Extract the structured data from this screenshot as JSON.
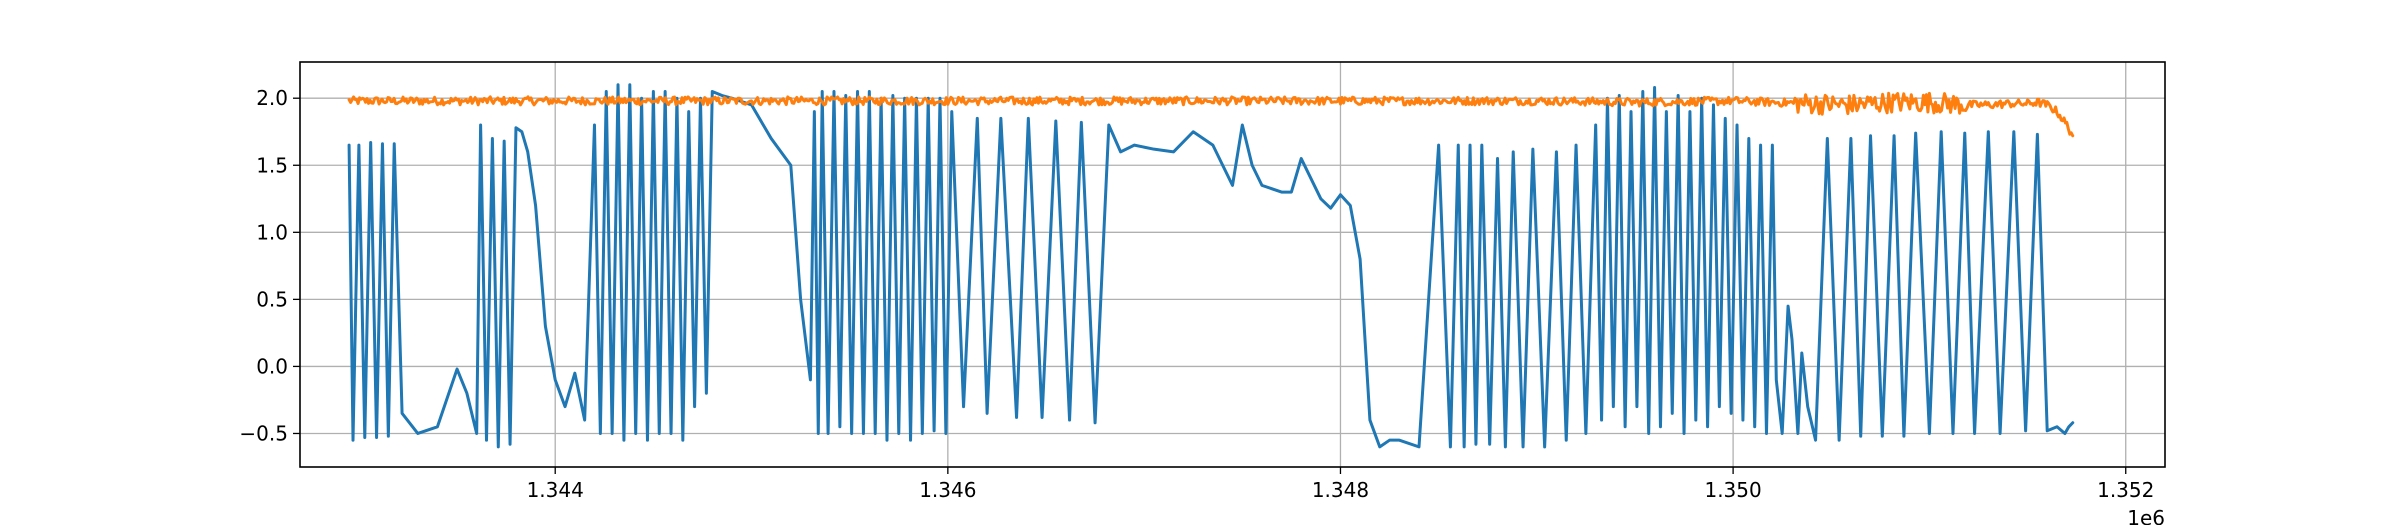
{
  "chart_data": {
    "type": "line",
    "title": "",
    "xlabel": "",
    "ylabel": "",
    "x_offset_label": "1e6",
    "xlim": [
      1342700,
      1352200
    ],
    "ylim": [
      -0.75,
      2.27
    ],
    "grid": true,
    "x_ticks": [
      {
        "value": 1344000,
        "label": "1.344"
      },
      {
        "value": 1346000,
        "label": "1.346"
      },
      {
        "value": 1348000,
        "label": "1.348"
      },
      {
        "value": 1350000,
        "label": "1.350"
      },
      {
        "value": 1352000,
        "label": "1.352"
      }
    ],
    "y_ticks": [
      {
        "value": 2.0,
        "label": "2.0"
      },
      {
        "value": 1.5,
        "label": "1.5"
      },
      {
        "value": 1.0,
        "label": "1.0"
      },
      {
        "value": 0.5,
        "label": "0.5"
      },
      {
        "value": 0.0,
        "label": "0.0"
      },
      {
        "value": -0.5,
        "label": "−0.5"
      }
    ],
    "series": [
      {
        "color": "#1f77b4",
        "x": [
          1342950,
          1342970,
          1343000,
          1343030,
          1343060,
          1343090,
          1343120,
          1343150,
          1343180,
          1343220,
          1343300,
          1343400,
          1343500,
          1343550,
          1343600,
          1343620,
          1343650,
          1343680,
          1343710,
          1343740,
          1343770,
          1343800,
          1343830,
          1343860,
          1343900,
          1343950,
          1344000,
          1344050,
          1344100,
          1344150,
          1344200,
          1344230,
          1344260,
          1344290,
          1344320,
          1344350,
          1344380,
          1344410,
          1344440,
          1344470,
          1344500,
          1344530,
          1344560,
          1344590,
          1344620,
          1344650,
          1344680,
          1344710,
          1344740,
          1344770,
          1344800,
          1344850,
          1344900,
          1345000,
          1345100,
          1345200,
          1345250,
          1345300,
          1345320,
          1345340,
          1345360,
          1345390,
          1345420,
          1345450,
          1345480,
          1345510,
          1345540,
          1345570,
          1345600,
          1345630,
          1345660,
          1345690,
          1345720,
          1345750,
          1345780,
          1345810,
          1345840,
          1345870,
          1345900,
          1345930,
          1345960,
          1345990,
          1346020,
          1346080,
          1346150,
          1346200,
          1346270,
          1346350,
          1346410,
          1346480,
          1346550,
          1346620,
          1346680,
          1346750,
          1346820,
          1346880,
          1346950,
          1347050,
          1347150,
          1347250,
          1347350,
          1347400,
          1347450,
          1347500,
          1347550,
          1347600,
          1347700,
          1347750,
          1347800,
          1347850,
          1347900,
          1347950,
          1348000,
          1348050,
          1348100,
          1348150,
          1348200,
          1348250,
          1348300,
          1348400,
          1348500,
          1348560,
          1348600,
          1348630,
          1348660,
          1348690,
          1348720,
          1348760,
          1348800,
          1348840,
          1348880,
          1348930,
          1348980,
          1349040,
          1349100,
          1349150,
          1349200,
          1349250,
          1349300,
          1349330,
          1349360,
          1349390,
          1349420,
          1349450,
          1349480,
          1349510,
          1349540,
          1349570,
          1349600,
          1349630,
          1349660,
          1349690,
          1349720,
          1349750,
          1349780,
          1349810,
          1349840,
          1349870,
          1349900,
          1349930,
          1349960,
          1349990,
          1350020,
          1350050,
          1350080,
          1350110,
          1350140,
          1350170,
          1350200,
          1350220,
          1350250,
          1350280,
          1350300,
          1350330,
          1350350,
          1350380,
          1350420,
          1350480,
          1350540,
          1350600,
          1350650,
          1350700,
          1350760,
          1350820,
          1350870,
          1350930,
          1351000,
          1351060,
          1351120,
          1351180,
          1351230,
          1351300,
          1351360,
          1351430,
          1351490,
          1351550,
          1351600,
          1351650,
          1351690,
          1351710,
          1351730
        ],
        "y": [
          1.65,
          -0.55,
          1.65,
          -0.53,
          1.67,
          -0.53,
          1.66,
          -0.52,
          1.66,
          -0.35,
          -0.5,
          -0.45,
          -0.02,
          -0.2,
          -0.5,
          1.8,
          -0.55,
          1.7,
          -0.6,
          1.68,
          -0.58,
          1.78,
          1.75,
          1.6,
          1.2,
          0.3,
          -0.1,
          -0.3,
          -0.05,
          -0.4,
          1.8,
          -0.5,
          2.05,
          -0.5,
          2.1,
          -0.55,
          2.1,
          -0.5,
          2.0,
          -0.55,
          2.05,
          -0.5,
          2.05,
          -0.5,
          2.0,
          -0.55,
          1.9,
          -0.3,
          2.0,
          -0.2,
          2.05,
          2.02,
          2.0,
          1.95,
          1.7,
          1.5,
          0.5,
          -0.1,
          1.9,
          -0.5,
          2.05,
          -0.5,
          2.05,
          -0.45,
          2.02,
          -0.5,
          2.05,
          -0.5,
          2.05,
          -0.5,
          2.0,
          -0.55,
          2.02,
          -0.5,
          2.0,
          -0.55,
          2.0,
          -0.5,
          2.0,
          -0.48,
          2.0,
          -0.5,
          1.9,
          -0.3,
          1.85,
          -0.35,
          1.85,
          -0.38,
          1.85,
          -0.38,
          1.83,
          -0.4,
          1.82,
          -0.42,
          1.8,
          1.6,
          1.65,
          1.62,
          1.6,
          1.75,
          1.65,
          1.5,
          1.35,
          1.8,
          1.5,
          1.35,
          1.3,
          1.3,
          1.55,
          1.4,
          1.25,
          1.18,
          1.28,
          1.2,
          0.8,
          -0.4,
          -0.6,
          -0.55,
          -0.55,
          -0.6,
          1.65,
          -0.6,
          1.65,
          -0.6,
          1.65,
          -0.58,
          1.65,
          -0.58,
          1.55,
          -0.6,
          1.6,
          -0.6,
          1.62,
          -0.6,
          1.6,
          -0.55,
          1.65,
          -0.5,
          1.8,
          -0.4,
          2.0,
          -0.3,
          2.02,
          -0.45,
          1.9,
          -0.3,
          2.05,
          -0.5,
          2.08,
          -0.45,
          1.9,
          -0.35,
          2.02,
          -0.5,
          1.9,
          -0.4,
          2.0,
          -0.45,
          1.95,
          -0.3,
          1.85,
          -0.35,
          1.8,
          -0.4,
          1.7,
          -0.45,
          1.65,
          -0.5,
          1.65,
          -0.1,
          -0.5,
          0.45,
          0.2,
          -0.5,
          0.1,
          -0.3,
          -0.55,
          1.7,
          -0.55,
          1.7,
          -0.52,
          1.72,
          -0.52,
          1.72,
          -0.52,
          1.74,
          -0.5,
          1.75,
          -0.5,
          1.74,
          -0.5,
          1.75,
          -0.5,
          1.75,
          -0.48,
          1.73,
          -0.48,
          -0.45,
          -0.5,
          -0.45,
          -0.42
        ]
      },
      {
        "color": "#ff7f0e",
        "x": [
          1342950,
          1343500,
          1344000,
          1344500,
          1345000,
          1345500,
          1346000,
          1346500,
          1347000,
          1347500,
          1348000,
          1348500,
          1349000,
          1349500,
          1350000,
          1350200,
          1350400,
          1350600,
          1350800,
          1351000,
          1351100,
          1351200,
          1351300,
          1351400,
          1351500,
          1351550,
          1351600,
          1351650,
          1351700,
          1351730
        ],
        "y": [
          1.98,
          1.98,
          1.98,
          1.98,
          1.98,
          1.98,
          1.98,
          1.98,
          1.98,
          1.98,
          1.98,
          1.98,
          1.98,
          1.97,
          1.98,
          1.97,
          1.96,
          1.95,
          1.97,
          1.97,
          1.96,
          1.95,
          1.95,
          1.96,
          1.96,
          1.97,
          1.95,
          1.9,
          1.8,
          1.72
        ],
        "noise_amplitude": 0.03
      }
    ]
  }
}
